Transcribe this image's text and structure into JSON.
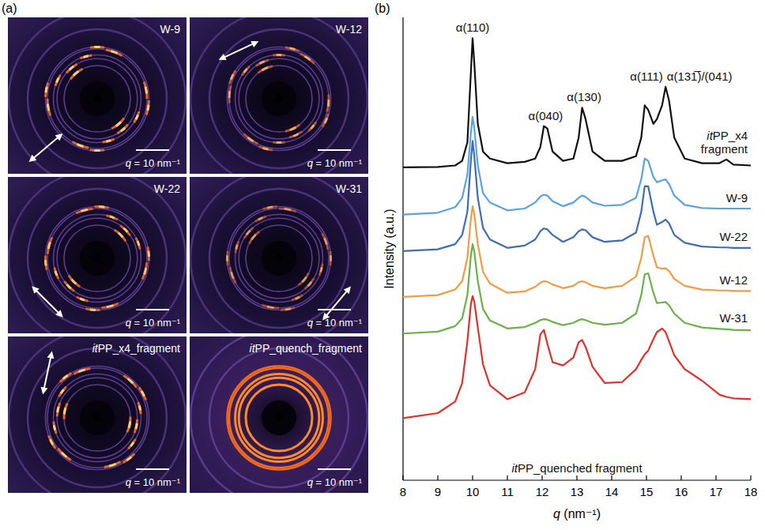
{
  "panel_a": {
    "label": "(a)",
    "images": [
      {
        "title": "W-9",
        "scale_label": "q = 10 nm⁻¹"
      },
      {
        "title": "W-12",
        "scale_label": "q = 10 nm⁻¹"
      },
      {
        "title": "W-22",
        "scale_label": "q = 10 nm⁻¹"
      },
      {
        "title": "W-31",
        "scale_label": "q = 10 nm⁻¹"
      },
      {
        "title": "itPP_x4_fragment",
        "scale_label": "q = 10 nm⁻¹"
      },
      {
        "title": "itPP_quench_fragment",
        "scale_label": "q = 10 nm⁻¹"
      }
    ]
  },
  "chart_data": {
    "type": "line",
    "panel_label": "(b)",
    "x_label": "q (nm⁻¹)",
    "y_label": "Intensity (a.u.)",
    "x": [
      8,
      9,
      9.5,
      9.7,
      9.85,
      9.95,
      10,
      10.05,
      10.15,
      10.3,
      10.5,
      11,
      11.5,
      11.8,
      11.95,
      12.05,
      12.15,
      12.3,
      12.6,
      12.9,
      13.05,
      13.15,
      13.25,
      13.45,
      13.8,
      14.3,
      14.7,
      14.85,
      14.95,
      15.05,
      15.2,
      15.3,
      15.45,
      15.55,
      15.65,
      15.8,
      16.1,
      16.6,
      17.1,
      17.3,
      17.5,
      18
    ],
    "xlim": [
      8,
      18
    ],
    "xticks": [
      8,
      9,
      10,
      11,
      12,
      13,
      14,
      15,
      16,
      17,
      18
    ],
    "ylim": [
      0,
      100
    ],
    "tick_labels": "x",
    "annotations": [
      {
        "text": "α(110)",
        "x": 10
      },
      {
        "text": "α(040)",
        "x": 12.1
      },
      {
        "text": "α(130)",
        "x": 13.15
      },
      {
        "text": "α(111)",
        "x": 15
      },
      {
        "text": "α(131̅)/(041)",
        "x": 15.55
      }
    ],
    "series": [
      {
        "name": "itPP_x4 fragment",
        "color": "#111111",
        "values": [
          67.6,
          67.7,
          68,
          69,
          73,
          88,
          95.5,
          90,
          77,
          71,
          69.5,
          68.5,
          68.8,
          69.5,
          72,
          76.5,
          76,
          71,
          69,
          69.5,
          74,
          80.5,
          78,
          71,
          69,
          69,
          70,
          74,
          81,
          80,
          77,
          78,
          81,
          85,
          82,
          74,
          69.5,
          68.5,
          68.5,
          69.3,
          68.2,
          68
        ]
      },
      {
        "name": "W-9",
        "color": "#5ba3dc",
        "values": [
          57.4,
          57.8,
          59,
          61,
          66,
          75,
          78.5,
          76,
          68,
          62,
          60,
          58.3,
          58.7,
          60,
          61.3,
          61.7,
          61.5,
          60.3,
          59.2,
          60,
          61,
          61.5,
          61.2,
          60,
          59.3,
          59.5,
          61,
          65,
          69.5,
          69,
          65.5,
          64.4,
          64.8,
          65,
          64,
          61.5,
          59.5,
          58.8,
          58.7,
          58.7,
          58.7,
          58.7
        ]
      },
      {
        "name": "W-22",
        "color": "#3d6db3",
        "values": [
          49.5,
          49.9,
          51,
          53,
          58,
          69,
          73.3,
          70,
          61,
          54.5,
          52,
          50.2,
          50.7,
          52,
          53.8,
          54.4,
          54.2,
          53,
          51.5,
          52.5,
          53.8,
          54.2,
          54,
          52.5,
          51.5,
          51.8,
          53.5,
          58,
          63.5,
          63.5,
          58,
          55.2,
          55.8,
          56.3,
          55.5,
          53,
          51.3,
          50.5,
          50.3,
          50.3,
          50.2,
          50.2
        ]
      },
      {
        "name": "W-12",
        "color": "#f29b45",
        "values": [
          39.6,
          40,
          41.2,
          43,
          48,
          56.5,
          59.2,
          57.5,
          51,
          45,
          42.5,
          40.5,
          40.8,
          41.8,
          42.7,
          43,
          42.9,
          42.3,
          41.5,
          42,
          42.8,
          43,
          42.8,
          42,
          41.5,
          42,
          44,
          48,
          52.5,
          52.8,
          48.5,
          46,
          45.7,
          45.8,
          45.2,
          43.5,
          42,
          41.2,
          41,
          41,
          40.9,
          40.9
        ]
      },
      {
        "name": "W-31",
        "color": "#6cb04a",
        "values": [
          31.7,
          32.1,
          33.3,
          35,
          40,
          48.5,
          51,
          49.3,
          43,
          37,
          34.5,
          32.8,
          33.1,
          34,
          34.6,
          34.8,
          34.7,
          34.2,
          33.5,
          34,
          34.6,
          34.8,
          34.6,
          34,
          33.6,
          34,
          36,
          40,
          44.5,
          44.7,
          40.5,
          38.3,
          38.4,
          38.5,
          37.8,
          36,
          34,
          33,
          32.7,
          32.6,
          32.5,
          32.4
        ]
      },
      {
        "name": "itPP_quenched fragment",
        "color": "#e0302c",
        "values": [
          13.4,
          14.5,
          17,
          21,
          30,
          38,
          39.8,
          38.5,
          33,
          25,
          20.5,
          17.5,
          19,
          24,
          31.5,
          32.5,
          29.5,
          25.5,
          24.8,
          26.5,
          29.8,
          30.3,
          28.8,
          24.5,
          21,
          21.2,
          24,
          26,
          27.2,
          28,
          30.5,
          32,
          32.8,
          32,
          30,
          27,
          24,
          21.5,
          18.5,
          18,
          17.7,
          17.5
        ]
      }
    ]
  }
}
